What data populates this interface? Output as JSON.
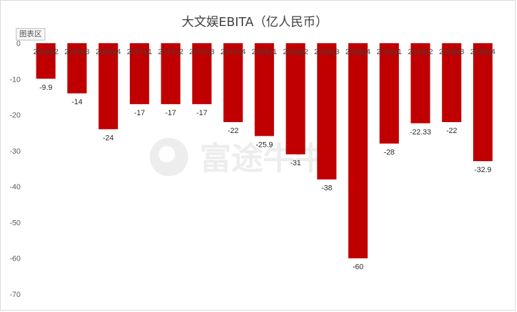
{
  "chart_data": {
    "type": "bar",
    "title": "大文娱EBITA（亿人民币）",
    "categories": [
      "2016q2",
      "2016q3",
      "2016q4",
      "2017q1",
      "2017q2",
      "2017q3",
      "2017q4",
      "2018q1",
      "2018q2",
      "2018q3",
      "2018q4",
      "2019q1",
      "2019q2",
      "2019q3",
      "2019q4"
    ],
    "values": [
      -9.9,
      -14,
      -24,
      -17,
      -17,
      -17,
      -22,
      -25.9,
      -31,
      -38,
      -60,
      -28,
      -22.33,
      -22,
      -32.9
    ],
    "data_labels": [
      "-9.9",
      "-14",
      "-24",
      "-17",
      "-17",
      "-17",
      "-22",
      "-25.9",
      "-31",
      "-38",
      "-60",
      "-28",
      "-22.33",
      "-22",
      "-32.9"
    ],
    "ylim": [
      -70,
      0
    ],
    "yticks": [
      0,
      -10,
      -20,
      -30,
      -40,
      -50,
      -60,
      -70
    ],
    "xlabel": "",
    "ylabel": "",
    "grid": false,
    "bar_color": "#c00000"
  },
  "chart_area_tag": "图表区",
  "watermark": {
    "text": "富途牛牛",
    "icon": "futu-logo-icon"
  }
}
